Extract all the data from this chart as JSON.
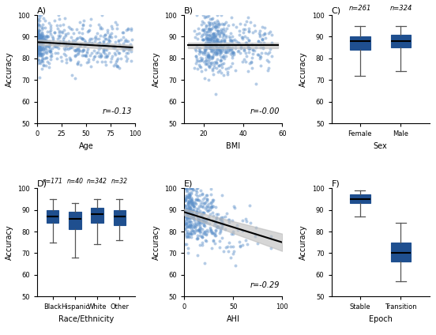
{
  "scatter_color": "#5b8fc9",
  "scatter_alpha": 0.45,
  "scatter_size": 8,
  "box_facecolor": "#1f4f8f",
  "box_edge_color": "#1f4f8f",
  "median_color": "black",
  "whisker_color": "#555555",
  "regression_color": "black",
  "ci_color": "#bbbbbb",
  "ylim": [
    50,
    100
  ],
  "yticks": [
    50,
    60,
    70,
    80,
    90,
    100
  ],
  "ylabel": "Accuracy",
  "panelA": {
    "xlabel": "Age",
    "xlim": [
      0,
      100
    ],
    "xticks": [
      0,
      25,
      50,
      75,
      100
    ],
    "r_text": "r=-0.13",
    "slope": -0.025,
    "intercept": 87.5,
    "x_range": [
      1,
      97
    ]
  },
  "panelB": {
    "xlabel": "BMI",
    "xlim": [
      10,
      60
    ],
    "xticks": [
      20,
      40,
      60
    ],
    "r_text": "r=-0.00",
    "slope": 0.0,
    "intercept": 86.0,
    "x_range": [
      12,
      58
    ]
  },
  "panelC": {
    "xlabel": "Sex",
    "categories": [
      "Female",
      "Male"
    ],
    "n_labels": [
      "n=261",
      "n=324"
    ],
    "stats": [
      {
        "median": 88,
        "q1": 84,
        "q3": 90,
        "whislo": 72,
        "whishi": 95
      },
      {
        "median": 88,
        "q1": 85,
        "q3": 91,
        "whislo": 74,
        "whishi": 95
      }
    ]
  },
  "panelD": {
    "xlabel": "Race/Ethnicity",
    "categories": [
      "Black",
      "Hispanic",
      "White",
      "Other"
    ],
    "n_labels": [
      "n=171",
      "n=40",
      "n=342",
      "n=32"
    ],
    "stats": [
      {
        "median": 87,
        "q1": 84,
        "q3": 90,
        "whislo": 75,
        "whishi": 95
      },
      {
        "median": 86,
        "q1": 81,
        "q3": 89,
        "whislo": 68,
        "whishi": 93
      },
      {
        "median": 88,
        "q1": 84,
        "q3": 91,
        "whislo": 74,
        "whishi": 95
      },
      {
        "median": 87,
        "q1": 83,
        "q3": 90,
        "whislo": 76,
        "whishi": 95
      }
    ]
  },
  "panelE": {
    "xlabel": "AHI",
    "xlim": [
      0,
      100
    ],
    "xticks": [
      0,
      50,
      100
    ],
    "r_text": "r=-0.29",
    "slope": -0.14,
    "intercept": 89.0,
    "x_range": [
      0,
      100
    ]
  },
  "panelF": {
    "xlabel": "Epoch",
    "categories": [
      "Stable",
      "Transition"
    ],
    "stats": [
      {
        "median": 95,
        "q1": 93,
        "q3": 97,
        "whislo": 87,
        "whishi": 99
      },
      {
        "median": 70,
        "q1": 66,
        "q3": 75,
        "whislo": 57,
        "whishi": 84
      }
    ]
  }
}
